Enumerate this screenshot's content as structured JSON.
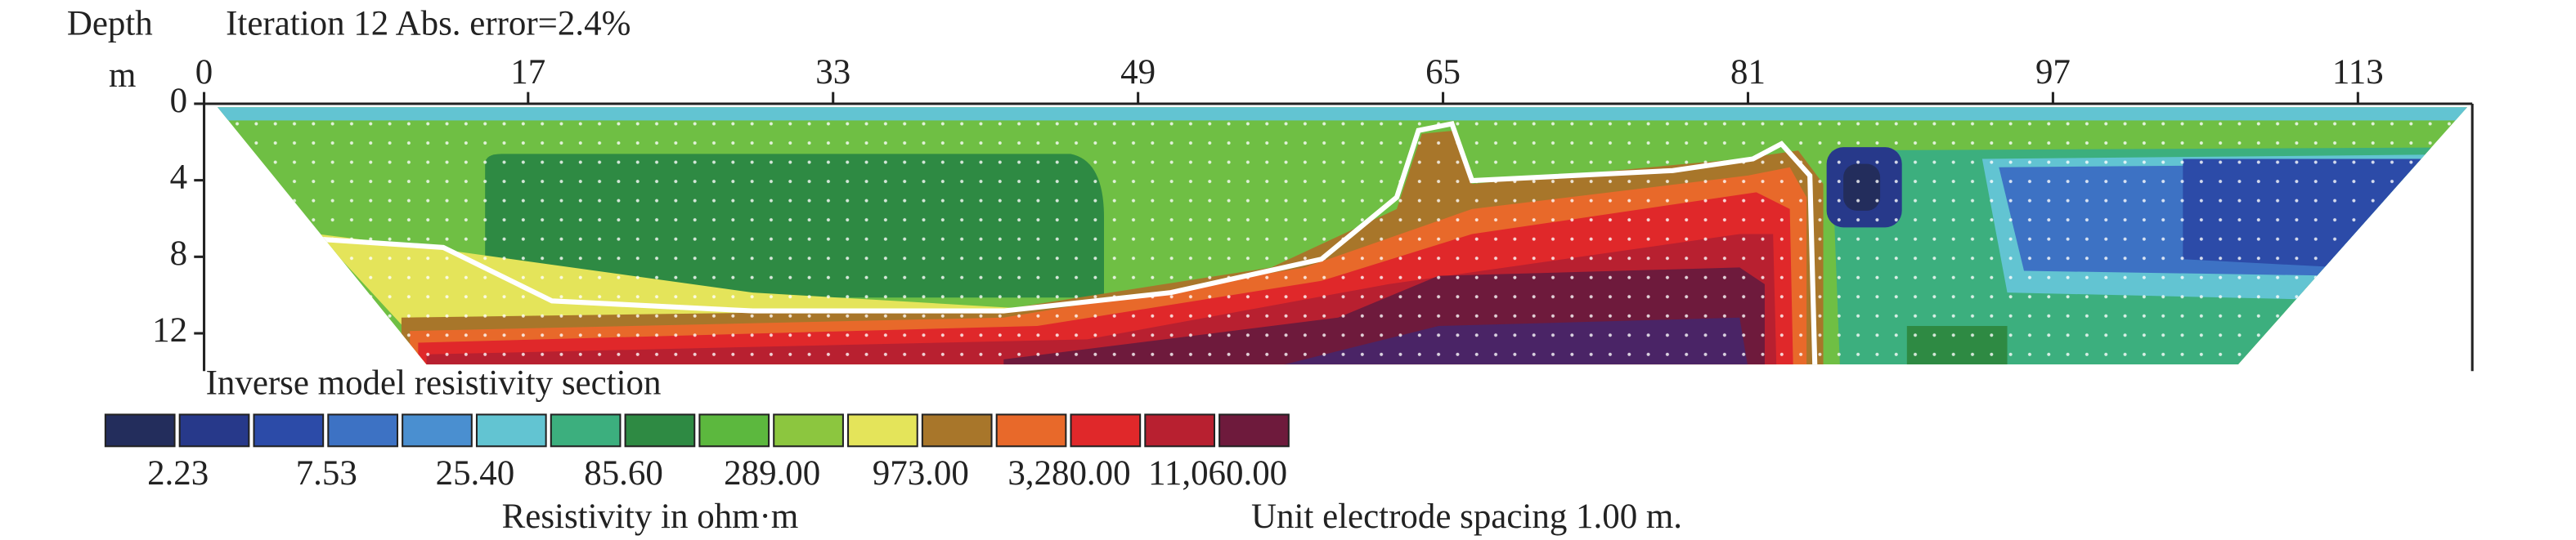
{
  "header": {
    "depth_label": "Depth",
    "title": "Iteration 12 Abs. error=2.4%",
    "unit_label": "m"
  },
  "chart_data": {
    "type": "section",
    "xlim": [
      0,
      119
    ],
    "xticks": [
      0,
      17,
      33,
      49,
      65,
      81,
      97,
      113
    ],
    "ylim": [
      0,
      13.8
    ],
    "yticks": [
      0,
      4,
      8,
      12
    ],
    "section_title": "Inverse model resistivity section",
    "legend": {
      "colors": [
        "#232d5c",
        "#27398a",
        "#2c4ba8",
        "#3d72c4",
        "#4a8fd0",
        "#62c4d2",
        "#3caf7e",
        "#2e8a43",
        "#5cb83e",
        "#8cc63f",
        "#e4e45a",
        "#a8762a",
        "#e8692a",
        "#e0282a",
        "#b82030",
        "#6e1a3c"
      ],
      "ticks": [
        2.23,
        7.53,
        {
          "value": 25.4,
          "label": "25.40"
        },
        {
          "value": 85.6,
          "label": "85.60"
        },
        {
          "value": 289,
          "label": "289.00"
        },
        {
          "value": 973,
          "label": "973.00"
        },
        {
          "value": 3280,
          "label": "3,280.00"
        },
        {
          "value": 11060,
          "label": "11,060.00"
        }
      ],
      "title": "Resistivity in ohm·m"
    },
    "note": "Unit electrode spacing 1.00 m."
  }
}
